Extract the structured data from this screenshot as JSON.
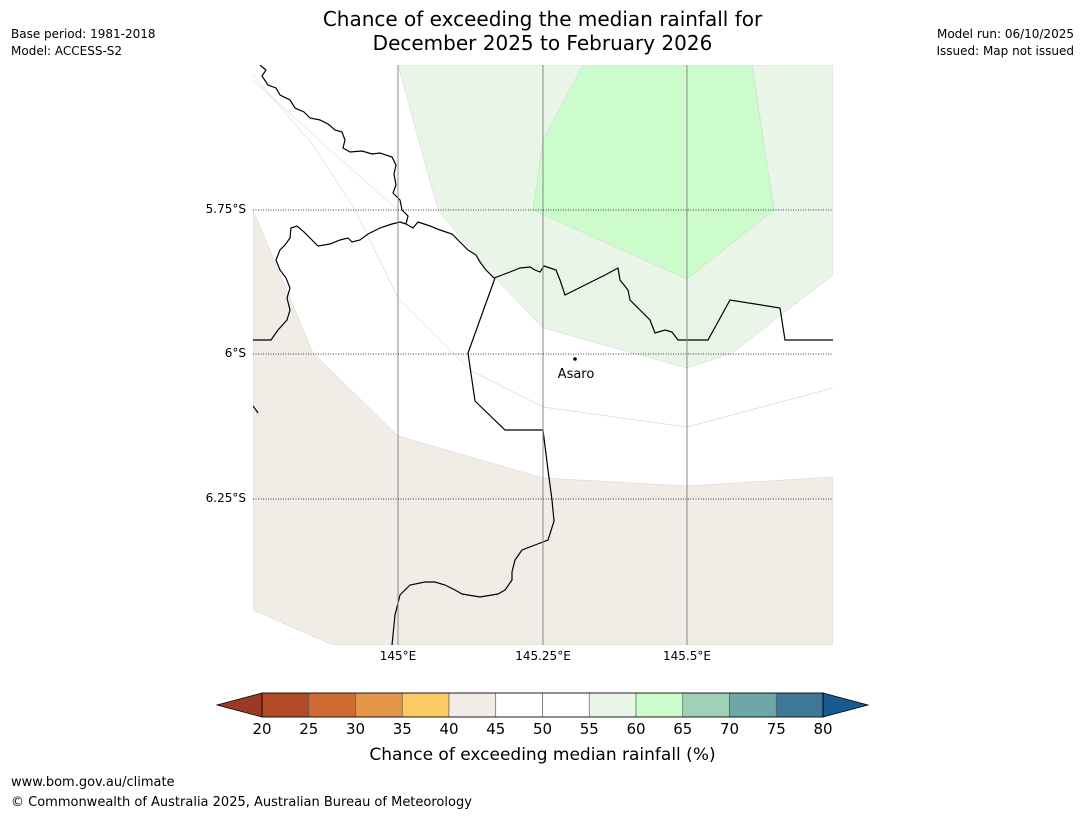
{
  "title_line1": "Chance of exceeding the median rainfall for",
  "title_line2": "December 2025 to February 2026",
  "meta": {
    "base_period": "Base period: 1981-2018",
    "model": "Model: ACCESS-S2",
    "model_run": "Model run: 06/10/2025",
    "issued": "Issued: Map not issued"
  },
  "axes": {
    "lat_labels": [
      "5.75°S",
      "6°S",
      "6.25°S"
    ],
    "lon_labels": [
      "145°E",
      "145.25°E",
      "145.5°E"
    ]
  },
  "place": {
    "name": "Asaro"
  },
  "colorbar": {
    "label": "Chance of exceeding median rainfall (%)",
    "ticks": [
      "20",
      "25",
      "30",
      "35",
      "40",
      "45",
      "50",
      "55",
      "60",
      "65",
      "70",
      "75",
      "80"
    ],
    "under_color": "#9a3a24",
    "over_color": "#175a8f",
    "colors": [
      "#b34a26",
      "#cf6a33",
      "#e39548",
      "#fccb63",
      "#f1ece6",
      "#ffffff",
      "#ffffff",
      "#e8f5e7",
      "#ccfccc",
      "#9ed1b8",
      "#6fa6a7",
      "#3f7799"
    ]
  },
  "footer": {
    "url": "www.bom.gov.au/climate",
    "copyright": "© Commonwealth of Australia 2025, Australian Bureau of Meteorology"
  }
}
